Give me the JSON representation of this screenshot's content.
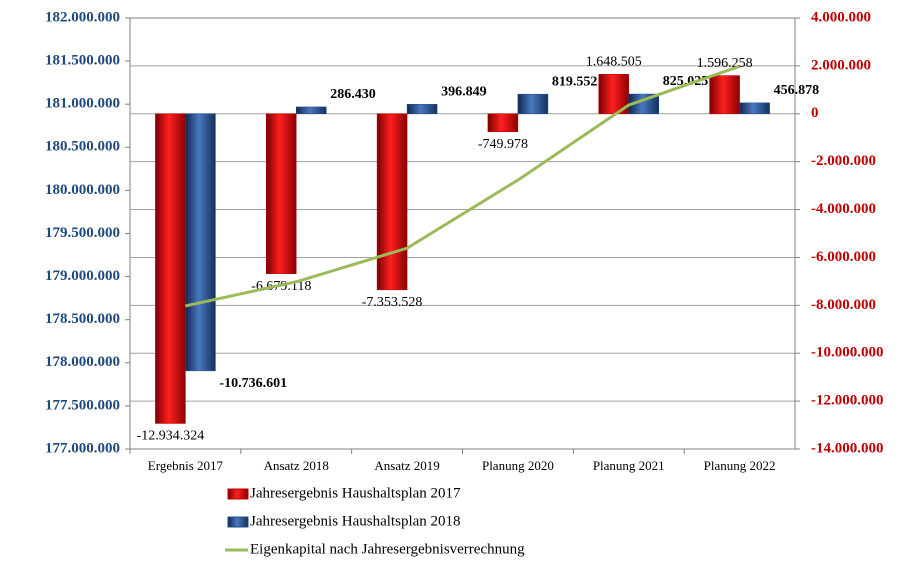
{
  "chart_data": {
    "type": "bar",
    "categories": [
      "Ergebnis 2017",
      "Ansatz 2018",
      "Ansatz 2019",
      "Planung 2020",
      "Planung 2021",
      "Planung 2022"
    ],
    "series": [
      {
        "name": "Jahresergebnis Haushaltsplan 2017",
        "type": "bar",
        "axis": "y2",
        "color": "#c00000",
        "values": [
          -12934324,
          -6679118,
          -7353528,
          -749978,
          1648505,
          1596258
        ],
        "value_labels": [
          "-12.934.324",
          "-6.679.118",
          "-7.353.528",
          "-749.978",
          "1.648.505",
          "1.596.258"
        ]
      },
      {
        "name": "Jahresergebnis Haushaltsplan 2018",
        "type": "bar",
        "axis": "y2",
        "color": "#1f4e8c",
        "values": [
          -10736601,
          286430,
          396849,
          819552,
          825025,
          456878
        ],
        "value_labels": [
          "-10.736.601",
          "286.430",
          "396.849",
          "819.552",
          "825.025",
          "456.878"
        ]
      },
      {
        "name": "Eigenkapital nach Jahresergebnisverrechnung",
        "type": "line",
        "axis": "y",
        "color": "#9bbb59",
        "values": [
          178660000,
          178940000,
          179330000,
          180120000,
          180990000,
          181440000
        ]
      }
    ],
    "ylim": [
      177000000,
      182000000
    ],
    "yticks": [
      {
        "value": 177000000,
        "label": "177.000.000"
      },
      {
        "value": 177500000,
        "label": "177.500.000"
      },
      {
        "value": 178000000,
        "label": "178.000.000"
      },
      {
        "value": 178500000,
        "label": "178.500.000"
      },
      {
        "value": 179000000,
        "label": "179.000.000"
      },
      {
        "value": 179500000,
        "label": "179.500.000"
      },
      {
        "value": 180000000,
        "label": "180.000.000"
      },
      {
        "value": 180500000,
        "label": "180.500.000"
      },
      {
        "value": 181000000,
        "label": "181.000.000"
      },
      {
        "value": 181500000,
        "label": "181.500.000"
      },
      {
        "value": 182000000,
        "label": "182.000.000"
      }
    ],
    "y2lim": [
      -14000000,
      4000000
    ],
    "y2ticks": [
      {
        "value": -14000000,
        "label": "-14.000.000"
      },
      {
        "value": -12000000,
        "label": "-12.000.000"
      },
      {
        "value": -10000000,
        "label": "-10.000.000"
      },
      {
        "value": -8000000,
        "label": "-8.000.000"
      },
      {
        "value": -6000000,
        "label": "-6.000.000"
      },
      {
        "value": -4000000,
        "label": "-4.000.000"
      },
      {
        "value": -2000000,
        "label": "-2.000.000"
      },
      {
        "value": 0,
        "label": "0"
      },
      {
        "value": 2000000,
        "label": "2.000.000"
      },
      {
        "value": 4000000,
        "label": "4.000.000"
      }
    ],
    "grid": true
  }
}
